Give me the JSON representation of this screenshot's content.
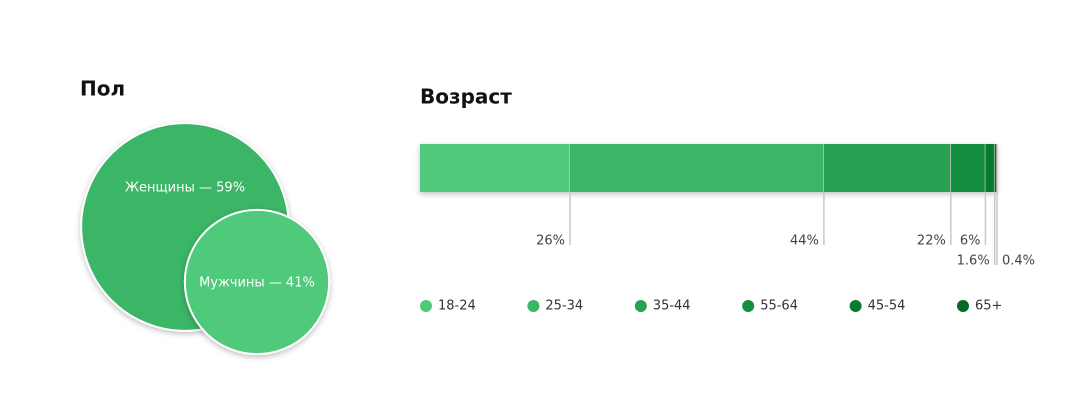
{
  "chart_data": [
    {
      "type": "circles",
      "title": "Пол",
      "values": [
        59,
        41
      ],
      "value_labels": [
        "Женщины — 59%",
        "Мужчины — 41%"
      ],
      "colors": [
        "#3bb566",
        "#4fc97a"
      ]
    },
    {
      "type": "stacked_bar",
      "title": "Возраст",
      "xlim": [
        0,
        100
      ],
      "series": [
        {
          "name": "18-24",
          "color": "#4fc97a",
          "values": [
            26
          ],
          "value_labels": [
            "26%"
          ]
        },
        {
          "name": "25-34",
          "color": "#3bb566",
          "values": [
            44
          ],
          "value_labels": [
            "44%"
          ]
        },
        {
          "name": "35-44",
          "color": "#27a152",
          "values": [
            22
          ],
          "value_labels": [
            "22%"
          ]
        },
        {
          "name": "55-64",
          "color": "#138f3f",
          "values": [
            6
          ],
          "value_labels": [
            "6%"
          ]
        },
        {
          "name": "45-54",
          "color": "#0a7a30",
          "values": [
            1.6
          ],
          "value_labels": [
            "1.6%"
          ]
        },
        {
          "name": "65+",
          "color": "#046a23",
          "values": [
            0.4
          ],
          "value_labels": [
            "0.4%"
          ]
        }
      ]
    }
  ]
}
